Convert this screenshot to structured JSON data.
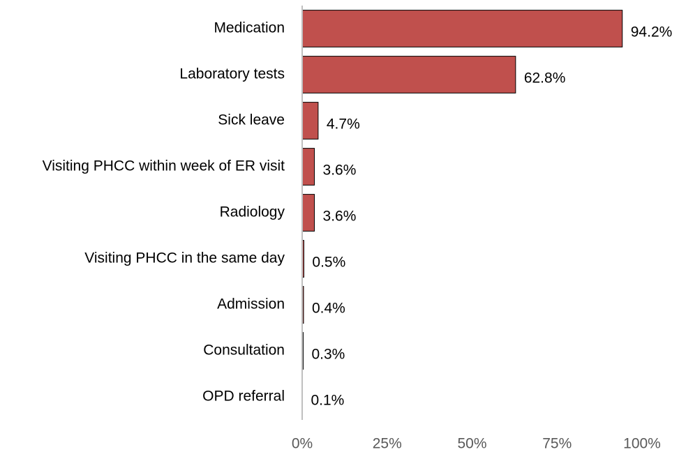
{
  "chart_data": {
    "type": "bar",
    "orientation": "horizontal",
    "categories": [
      "Medication",
      "Laboratory tests",
      "Sick leave",
      "Visiting PHCC within week of ER visit",
      "Radiology",
      "Visiting PHCC in the same day",
      "Admission",
      "Consultation",
      "OPD referral"
    ],
    "values": [
      94.2,
      62.8,
      4.7,
      3.6,
      3.6,
      0.5,
      0.4,
      0.3,
      0.1
    ],
    "value_labels": [
      "94.2%",
      "62.8%",
      "4.7%",
      "3.6%",
      "3.6%",
      "0.5%",
      "0.4%",
      "0.3%",
      "0.1%"
    ],
    "color": "#c0504d",
    "xlim": [
      0,
      100
    ],
    "xticks": [
      {
        "value": 0,
        "label": "0%"
      },
      {
        "value": 25,
        "label": "25%"
      },
      {
        "value": 50,
        "label": "50%"
      },
      {
        "value": 75,
        "label": "75%"
      },
      {
        "value": 100,
        "label": "100%"
      }
    ],
    "grid": false
  }
}
